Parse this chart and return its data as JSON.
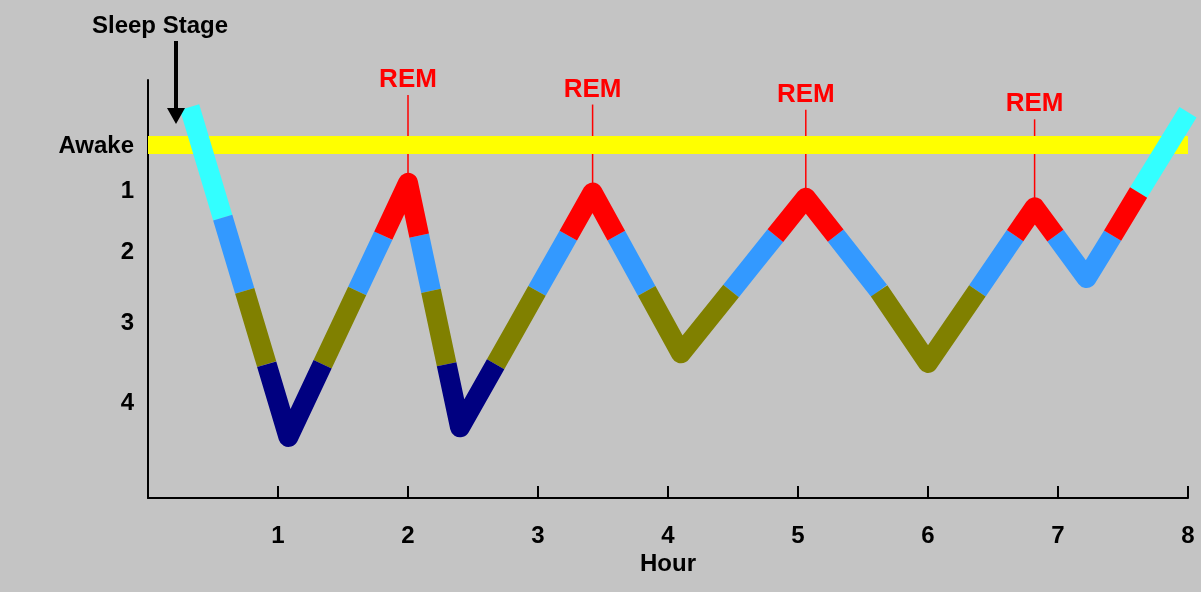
{
  "chart_data": {
    "type": "line",
    "xlabel": "Hour",
    "ylabel": "Sleep Stage",
    "xlim": [
      0,
      8
    ],
    "xticks": [
      1,
      2,
      3,
      4,
      5,
      6,
      7,
      8
    ],
    "ylim": [
      5.5,
      -1
    ],
    "yticks": [
      {
        "value": 0,
        "label": "Awake"
      },
      {
        "value": 0.7,
        "label": "1"
      },
      {
        "value": 1.65,
        "label": "2"
      },
      {
        "value": 2.75,
        "label": "3"
      },
      {
        "value": 4,
        "label": "4"
      }
    ],
    "series": [
      {
        "color": "#33ffff",
        "x": [
          0.32,
          0.575,
          1.0,
          7.62,
          8.0
        ],
        "values": [
          -0.58,
          1.14,
          null,
          0.75,
          -0.5
        ]
      },
      {
        "color": "#3399ff",
        "x": [
          0.575,
          0.744,
          1.2,
          1.609,
          1.81,
          1.9,
          2.086,
          2.177,
          2.5,
          2.992,
          3.233,
          3.4,
          3.602,
          3.836,
          4.2,
          4.485,
          4.826,
          5.0,
          5.29,
          5.624,
          6.0,
          6.38,
          6.67,
          6.8,
          6.98,
          7.22,
          7.42
        ],
        "values": [
          1.14,
          2.28,
          null,
          2.28,
          1.42,
          null,
          1.42,
          2.28,
          null,
          2.28,
          1.42,
          null,
          1.42,
          2.28,
          null,
          2.28,
          1.42,
          null,
          1.42,
          2.28,
          null,
          2.28,
          1.42,
          null,
          1.42,
          2.08,
          1.42
        ]
      },
      {
        "color": "#808000",
        "x": [
          0.744,
          0.913,
          1.1,
          1.343,
          1.609,
          1.9,
          2.177,
          2.297,
          2.5,
          2.674,
          2.992,
          3.4,
          3.836,
          4.1,
          4.485,
          5.0,
          5.624,
          6.0,
          6.38
        ],
        "values": [
          2.28,
          3.42,
          null,
          3.42,
          2.28,
          null,
          2.28,
          3.42,
          null,
          3.42,
          2.28,
          null,
          2.28,
          3.25,
          2.28,
          null,
          2.28,
          3.4,
          2.28
        ]
      },
      {
        "color": "#000080",
        "x": [
          0.913,
          1.08,
          1.343,
          1.9,
          2.297,
          2.4,
          2.674
        ],
        "values": [
          3.42,
          4.55,
          3.42,
          null,
          3.42,
          4.4,
          3.42
        ]
      },
      {
        "color": "#ff0000",
        "x": [
          1.81,
          2.0,
          2.086,
          2.5,
          3.233,
          3.42,
          3.602,
          4.2,
          4.826,
          5.06,
          5.29,
          6.0,
          6.67,
          6.82,
          6.98,
          7.2,
          7.42,
          7.62
        ],
        "values": [
          1.42,
          0.6,
          1.42,
          null,
          1.42,
          0.75,
          1.42,
          null,
          1.42,
          0.83,
          1.42,
          null,
          1.42,
          0.98,
          1.42,
          null,
          1.42,
          0.75
        ]
      }
    ],
    "ref_lines": [
      {
        "axis": "y",
        "value": 0,
        "color": "#ffff00"
      }
    ],
    "annotations": [
      {
        "text": "REM",
        "x": 2.0,
        "y": 0.6
      },
      {
        "text": "REM",
        "x": 3.42,
        "y": 0.75
      },
      {
        "text": "REM",
        "x": 5.06,
        "y": 0.83
      },
      {
        "text": "REM",
        "x": 6.82,
        "y": 0.98
      }
    ],
    "grid": false,
    "marker": "none",
    "line_style": "solid"
  }
}
